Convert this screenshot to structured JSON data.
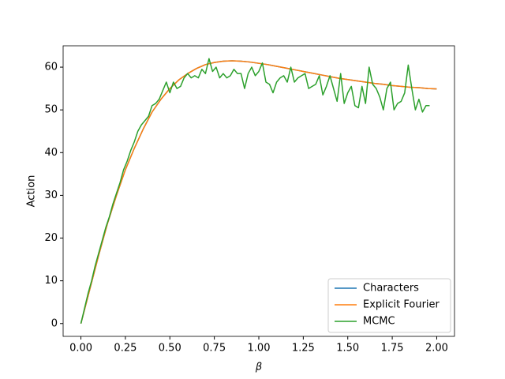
{
  "chart_data": {
    "type": "line",
    "xlabel": "β",
    "ylabel": "Action",
    "xlim": [
      -0.1,
      2.1
    ],
    "ylim": [
      -3,
      65
    ],
    "xticks": [
      {
        "value": 0,
        "label": "0.00"
      },
      {
        "value": 0.25,
        "label": "0.25"
      },
      {
        "value": 0.5,
        "label": "0.50"
      },
      {
        "value": 0.75,
        "label": "0.75"
      },
      {
        "value": 1,
        "label": "1.00"
      },
      {
        "value": 1.25,
        "label": "1.25"
      },
      {
        "value": 1.5,
        "label": "1.50"
      },
      {
        "value": 1.75,
        "label": "1.75"
      },
      {
        "value": 2,
        "label": "2.00"
      }
    ],
    "yticks": [
      0,
      10,
      20,
      30,
      40,
      50,
      60
    ],
    "legend": "lower right",
    "series": [
      {
        "name": "Characters",
        "color": "#1f77b4",
        "x": [
          0,
          0.05,
          0.1,
          0.15,
          0.2,
          0.25,
          0.3,
          0.35,
          0.4,
          0.45,
          0.5,
          0.55,
          0.6,
          0.65,
          0.7,
          0.75,
          0.8,
          0.85,
          0.9,
          0.95,
          1,
          1.05,
          1.1,
          1.15,
          1.2,
          1.25,
          1.3,
          1.35,
          1.4,
          1.45,
          1.5,
          1.55,
          1.6,
          1.65,
          1.7,
          1.75,
          1.8,
          1.85,
          1.9,
          1.95,
          2
        ],
        "values": [
          0,
          8,
          16,
          23.5,
          30,
          36,
          41,
          45.5,
          49.5,
          52.5,
          55,
          57,
          58.5,
          59.7,
          60.6,
          61.1,
          61.4,
          61.5,
          61.4,
          61.2,
          60.9,
          60.6,
          60.2,
          59.8,
          59.4,
          59,
          58.6,
          58.2,
          57.8,
          57.4,
          57.1,
          56.8,
          56.5,
          56.2,
          56,
          55.7,
          55.5,
          55.3,
          55.2,
          55,
          54.9
        ]
      },
      {
        "name": "Explicit Fourier",
        "color": "#ff7f0e",
        "x": [
          0,
          0.05,
          0.1,
          0.15,
          0.2,
          0.25,
          0.3,
          0.35,
          0.4,
          0.45,
          0.5,
          0.55,
          0.6,
          0.65,
          0.7,
          0.75,
          0.8,
          0.85,
          0.9,
          0.95,
          1,
          1.05,
          1.1,
          1.15,
          1.2,
          1.25,
          1.3,
          1.35,
          1.4,
          1.45,
          1.5,
          1.55,
          1.6,
          1.65,
          1.7,
          1.75,
          1.8,
          1.85,
          1.9,
          1.95,
          2
        ],
        "values": [
          0,
          8,
          16,
          23.5,
          30,
          36,
          41,
          45.5,
          49.5,
          52.5,
          55,
          57,
          58.5,
          59.7,
          60.6,
          61.1,
          61.4,
          61.5,
          61.4,
          61.2,
          60.9,
          60.6,
          60.2,
          59.8,
          59.4,
          59,
          58.6,
          58.2,
          57.8,
          57.4,
          57.1,
          56.8,
          56.5,
          56.2,
          56,
          55.7,
          55.5,
          55.3,
          55.2,
          55,
          54.9
        ]
      },
      {
        "name": "MCMC",
        "color": "#2ca02c",
        "x": [
          0,
          0.02,
          0.04,
          0.06,
          0.08,
          0.1,
          0.12,
          0.14,
          0.16,
          0.18,
          0.2,
          0.22,
          0.24,
          0.26,
          0.28,
          0.3,
          0.32,
          0.34,
          0.36,
          0.38,
          0.4,
          0.42,
          0.44,
          0.46,
          0.48,
          0.5,
          0.52,
          0.54,
          0.56,
          0.58,
          0.6,
          0.62,
          0.64,
          0.66,
          0.68,
          0.7,
          0.72,
          0.74,
          0.76,
          0.78,
          0.8,
          0.82,
          0.84,
          0.86,
          0.88,
          0.9,
          0.92,
          0.94,
          0.96,
          0.98,
          1,
          1.02,
          1.04,
          1.06,
          1.08,
          1.1,
          1.12,
          1.14,
          1.16,
          1.18,
          1.2,
          1.22,
          1.24,
          1.26,
          1.28,
          1.3,
          1.32,
          1.34,
          1.36,
          1.38,
          1.4,
          1.42,
          1.44,
          1.46,
          1.48,
          1.5,
          1.52,
          1.54,
          1.56,
          1.58,
          1.6,
          1.62,
          1.64,
          1.66,
          1.68,
          1.7,
          1.72,
          1.74,
          1.76,
          1.78,
          1.8,
          1.82,
          1.84,
          1.86,
          1.88,
          1.9,
          1.92,
          1.94,
          1.96
        ],
        "values": [
          0,
          3.5,
          7,
          10,
          13.5,
          16.5,
          19.5,
          22.5,
          25,
          28,
          30.5,
          33,
          36,
          38,
          40.5,
          42.5,
          45,
          46.5,
          47.5,
          48.5,
          51,
          51.5,
          52.5,
          54.5,
          56.5,
          54,
          56.5,
          55,
          55.5,
          57.5,
          58.5,
          57.5,
          58,
          57.5,
          59.5,
          58.5,
          62,
          59,
          60,
          57.5,
          58.5,
          57.5,
          58,
          59.5,
          58.5,
          58.5,
          55,
          58.5,
          60,
          58,
          59,
          61,
          56.5,
          56,
          54,
          56.5,
          57.5,
          58,
          56.5,
          60,
          56.5,
          57.5,
          58,
          58.5,
          55,
          55.5,
          56,
          58,
          53.5,
          55.5,
          58,
          55,
          52,
          58.5,
          51.5,
          54,
          55.5,
          51,
          50.5,
          55.5,
          51.5,
          60,
          56,
          55,
          53,
          50,
          55,
          56.5,
          50,
          51.5,
          52,
          54,
          60.5,
          55,
          50,
          52.5,
          49.5,
          51,
          51
        ]
      }
    ]
  }
}
